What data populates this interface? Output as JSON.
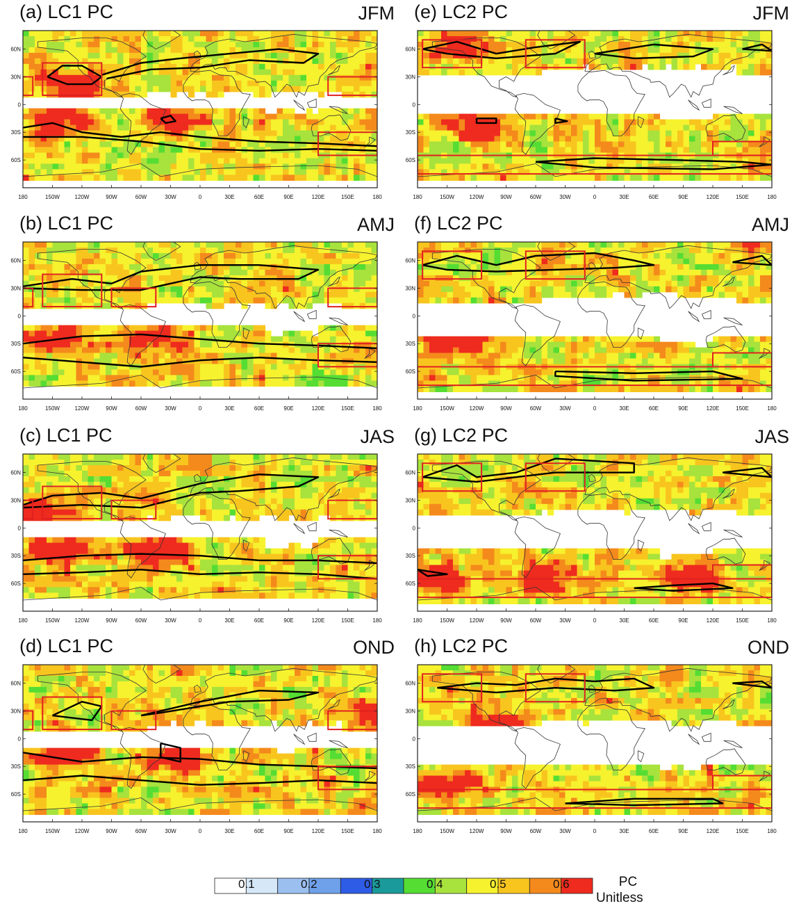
{
  "panels": [
    {
      "label": "(a) LC1 PC",
      "season": "JFM"
    },
    {
      "label": "(e) LC2 PC",
      "season": "JFM"
    },
    {
      "label": "(b) LC1 PC",
      "season": "AMJ"
    },
    {
      "label": "(f) LC2 PC",
      "season": "AMJ"
    },
    {
      "label": "(c) LC1 PC",
      "season": "JAS"
    },
    {
      "label": "(g) LC2 PC",
      "season": "JAS"
    },
    {
      "label": "(d) LC1 PC",
      "season": "OND"
    },
    {
      "label": "(h) LC2 PC",
      "season": "OND"
    }
  ],
  "axes": {
    "lat_ticks": [
      "60N",
      "30N",
      "0",
      "30S",
      "60S"
    ],
    "lon_ticks": [
      "180",
      "150W",
      "120W",
      "90W",
      "60W",
      "30W",
      "0",
      "30E",
      "60E",
      "90E",
      "120E",
      "150E",
      "180"
    ]
  },
  "colorbar": {
    "title": "PC",
    "unit": "Unitless",
    "tick_labels": [
      "0.1",
      "0.2",
      "0.3",
      "0.4",
      "0.5",
      "0.6"
    ],
    "colors": [
      "#ffffff",
      "#d6e8f8",
      "#9bc0f0",
      "#6fa0ea",
      "#2e5ce6",
      "#1a9a9a",
      "#55dd33",
      "#a8e23c",
      "#f6f22e",
      "#f8c51e",
      "#f48a1c",
      "#ee2b1e"
    ]
  },
  "colors": {
    "frame": "#222222",
    "contour": "#000000",
    "region_box": "#e02020",
    "coastline": "#333333"
  }
}
